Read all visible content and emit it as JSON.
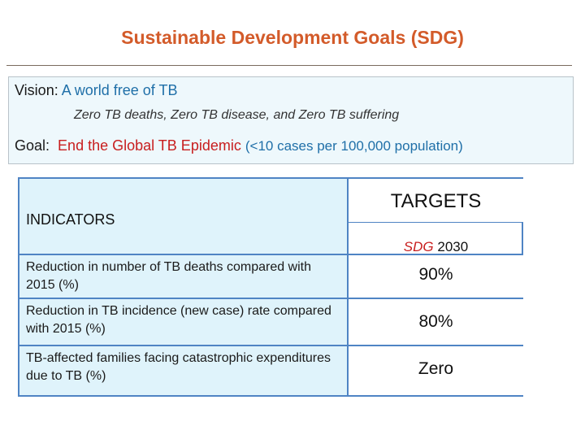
{
  "slide": {
    "title": "Sustainable Development Goals (SDG)"
  },
  "vision": {
    "label": "Vision:",
    "text": "A world free of TB",
    "subtext": "Zero TB deaths, Zero TB disease, and Zero TB suffering"
  },
  "goal": {
    "label": "Goal:",
    "text": "End the Global TB Epidemic",
    "paren": "(<10 cases per 100,000 population)"
  },
  "table": {
    "indicators_header": "INDICATORS",
    "targets_header": "TARGETS",
    "sdg_label": "SDG",
    "sdg_year": "2030",
    "rows": [
      {
        "indicator": "Reduction in number of TB deaths compared with 2015 (%)",
        "target": "90%"
      },
      {
        "indicator": "Reduction in TB incidence (new case) rate compared with 2015 (%)",
        "target": "80%"
      },
      {
        "indicator": "TB-affected families facing catastrophic expenditures due to TB (%)",
        "target": "Zero"
      }
    ]
  },
  "colors": {
    "title": "#d35b2a",
    "accent_blue": "#1f6fa8",
    "accent_red": "#c81e1e",
    "table_border": "#4f84c4",
    "light_blue_fill": "#dff3fb"
  }
}
